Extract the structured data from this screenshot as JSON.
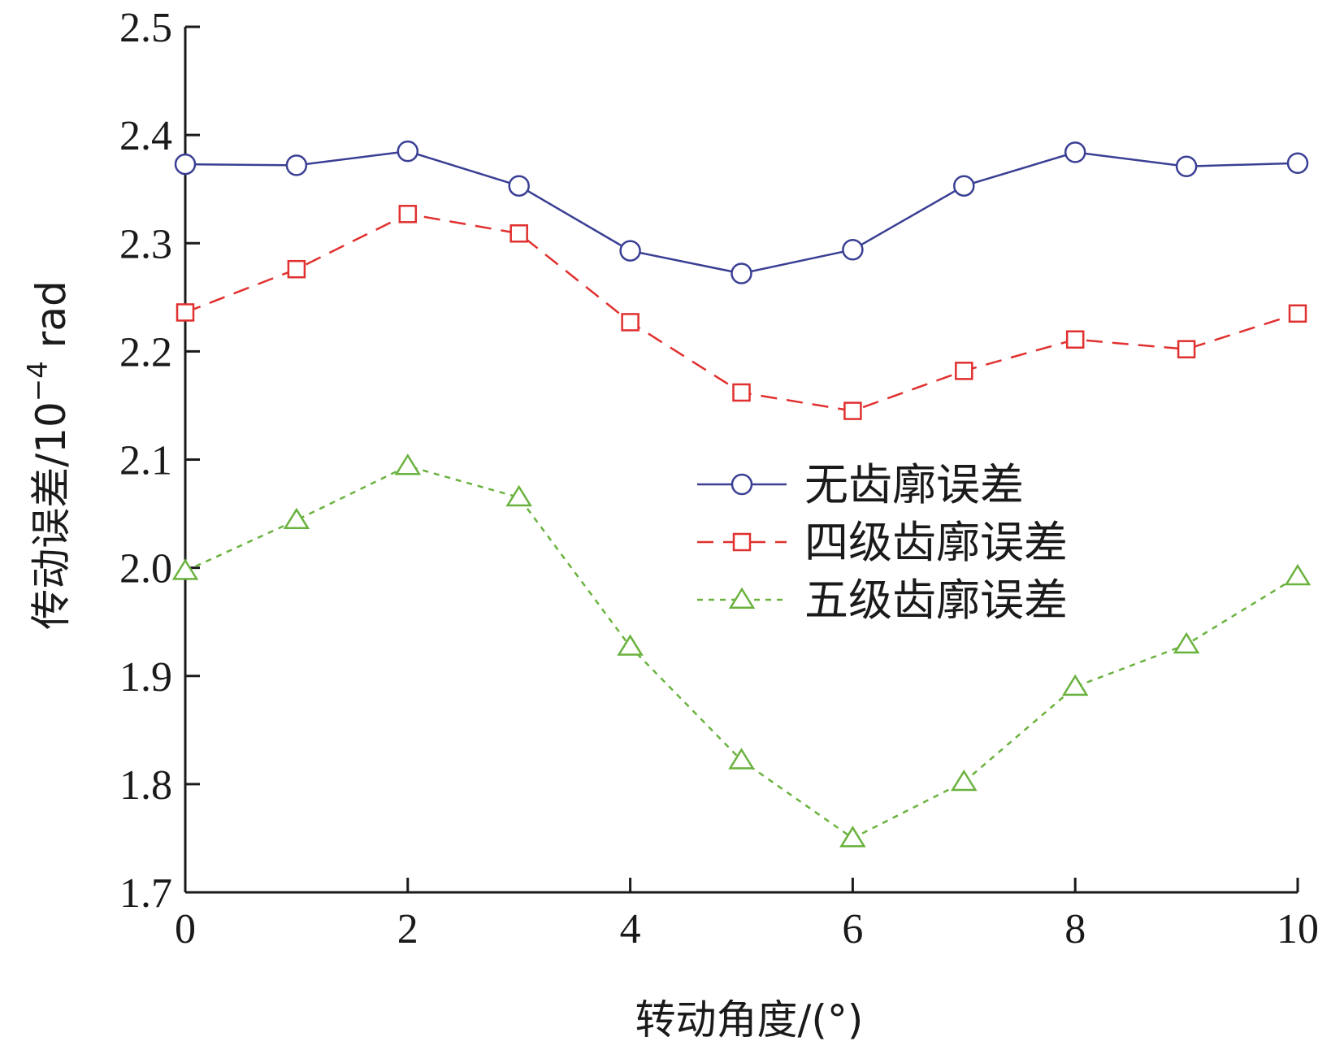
{
  "chart_data": {
    "type": "line",
    "xlabel": "转动角度/(°)",
    "ylabel": "传动误差/10",
    "ylabel_exp": "−4",
    "ylabel_unit": " rad",
    "xlim": [
      0,
      10
    ],
    "ylim": [
      1.7,
      2.5
    ],
    "xticks": [
      0,
      2,
      4,
      6,
      8,
      10
    ],
    "xtick_labels": [
      "0",
      "2",
      "4",
      "6",
      "8",
      "10"
    ],
    "yticks": [
      1.7,
      1.8,
      1.9,
      2.0,
      2.1,
      2.2,
      2.3,
      2.4,
      2.5
    ],
    "ytick_labels": [
      "1.7",
      "1.8",
      "1.9",
      "2.0",
      "2.1",
      "2.2",
      "2.3",
      "2.4",
      "2.5"
    ],
    "legend_position": "center-right",
    "grid": false,
    "x": [
      0,
      1,
      2,
      3,
      4,
      5,
      6,
      7,
      8,
      9,
      10
    ],
    "series": [
      {
        "name": "无齿廓误差",
        "values": [
          2.373,
          2.372,
          2.385,
          2.353,
          2.293,
          2.272,
          2.294,
          2.353,
          2.384,
          2.371,
          2.374
        ],
        "color": "#3a3f94",
        "dash": "solid",
        "marker": "circle"
      },
      {
        "name": "四级齿廓误差",
        "values": [
          2.236,
          2.276,
          2.327,
          2.309,
          2.227,
          2.162,
          2.145,
          2.182,
          2.211,
          2.202,
          2.235
        ],
        "color": "#e0302f",
        "dash": "dashed",
        "marker": "square"
      },
      {
        "name": "五级齿廓误差",
        "values": [
          1.997,
          2.044,
          2.094,
          2.065,
          1.927,
          1.822,
          1.75,
          1.802,
          1.89,
          1.929,
          1.992
        ],
        "color": "#6ab23e",
        "dash": "dotted",
        "marker": "triangle"
      }
    ]
  }
}
